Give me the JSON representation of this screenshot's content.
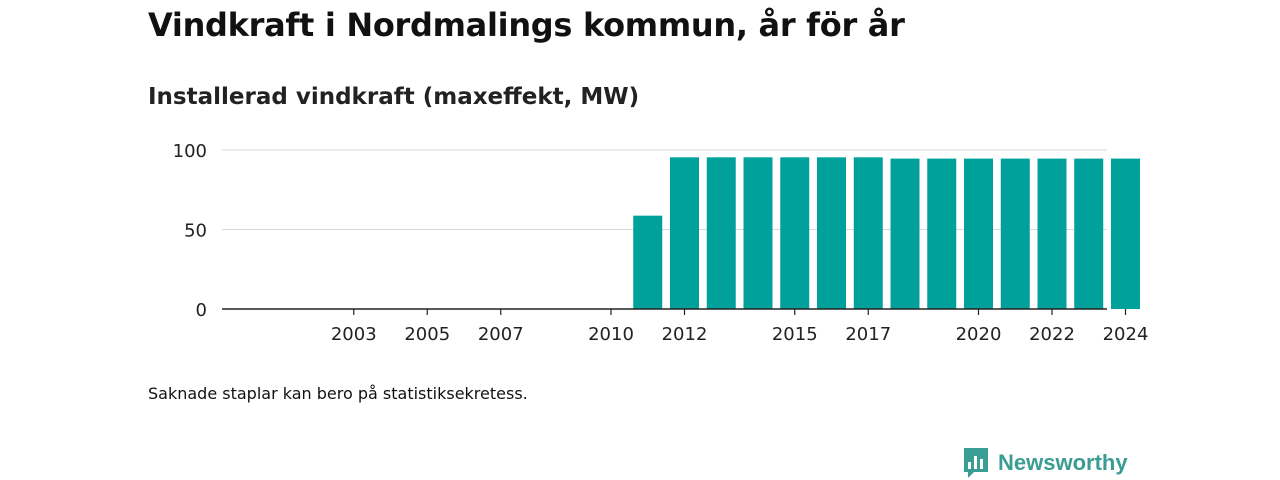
{
  "header": {
    "title": "Vindkraft i Nordmalings kommun, år för år",
    "subtitle": "Installerad vindkraft (maxeffekt, MW)"
  },
  "footer": {
    "note": "Saknade staplar kan bero på statistiksekretess.",
    "brand": "Newsworthy"
  },
  "colors": {
    "bar": "#00a19a",
    "brand": "#3a9d93"
  },
  "chart_data": {
    "type": "bar",
    "title": "Vindkraft i Nordmalings kommun, år för år",
    "subtitle": "Installerad vindkraft (maxeffekt, MW)",
    "xlabel": "",
    "ylabel": "",
    "ylim": [
      0,
      100
    ],
    "yticks": [
      0,
      50,
      100
    ],
    "grid": true,
    "legend": "none",
    "categories": [
      "2000",
      "2001",
      "2002",
      "2003",
      "2004",
      "2005",
      "2006",
      "2007",
      "2008",
      "2009",
      "2010",
      "2011",
      "2012",
      "2013",
      "2014",
      "2015",
      "2016",
      "2017",
      "2018",
      "2019",
      "2020",
      "2021",
      "2022",
      "2023",
      "2024"
    ],
    "xtick_labels": [
      "2003",
      "2005",
      "2007",
      "2010",
      "2012",
      "2015",
      "2017",
      "2020",
      "2022",
      "2024"
    ],
    "values": [
      0,
      0,
      0,
      0,
      0,
      0,
      0,
      0,
      0,
      0,
      0,
      58.7,
      95.4,
      95.4,
      95.4,
      95.4,
      95.4,
      95.4,
      94.6,
      94.6,
      94.6,
      94.6,
      94.6,
      94.6,
      94.6
    ]
  }
}
